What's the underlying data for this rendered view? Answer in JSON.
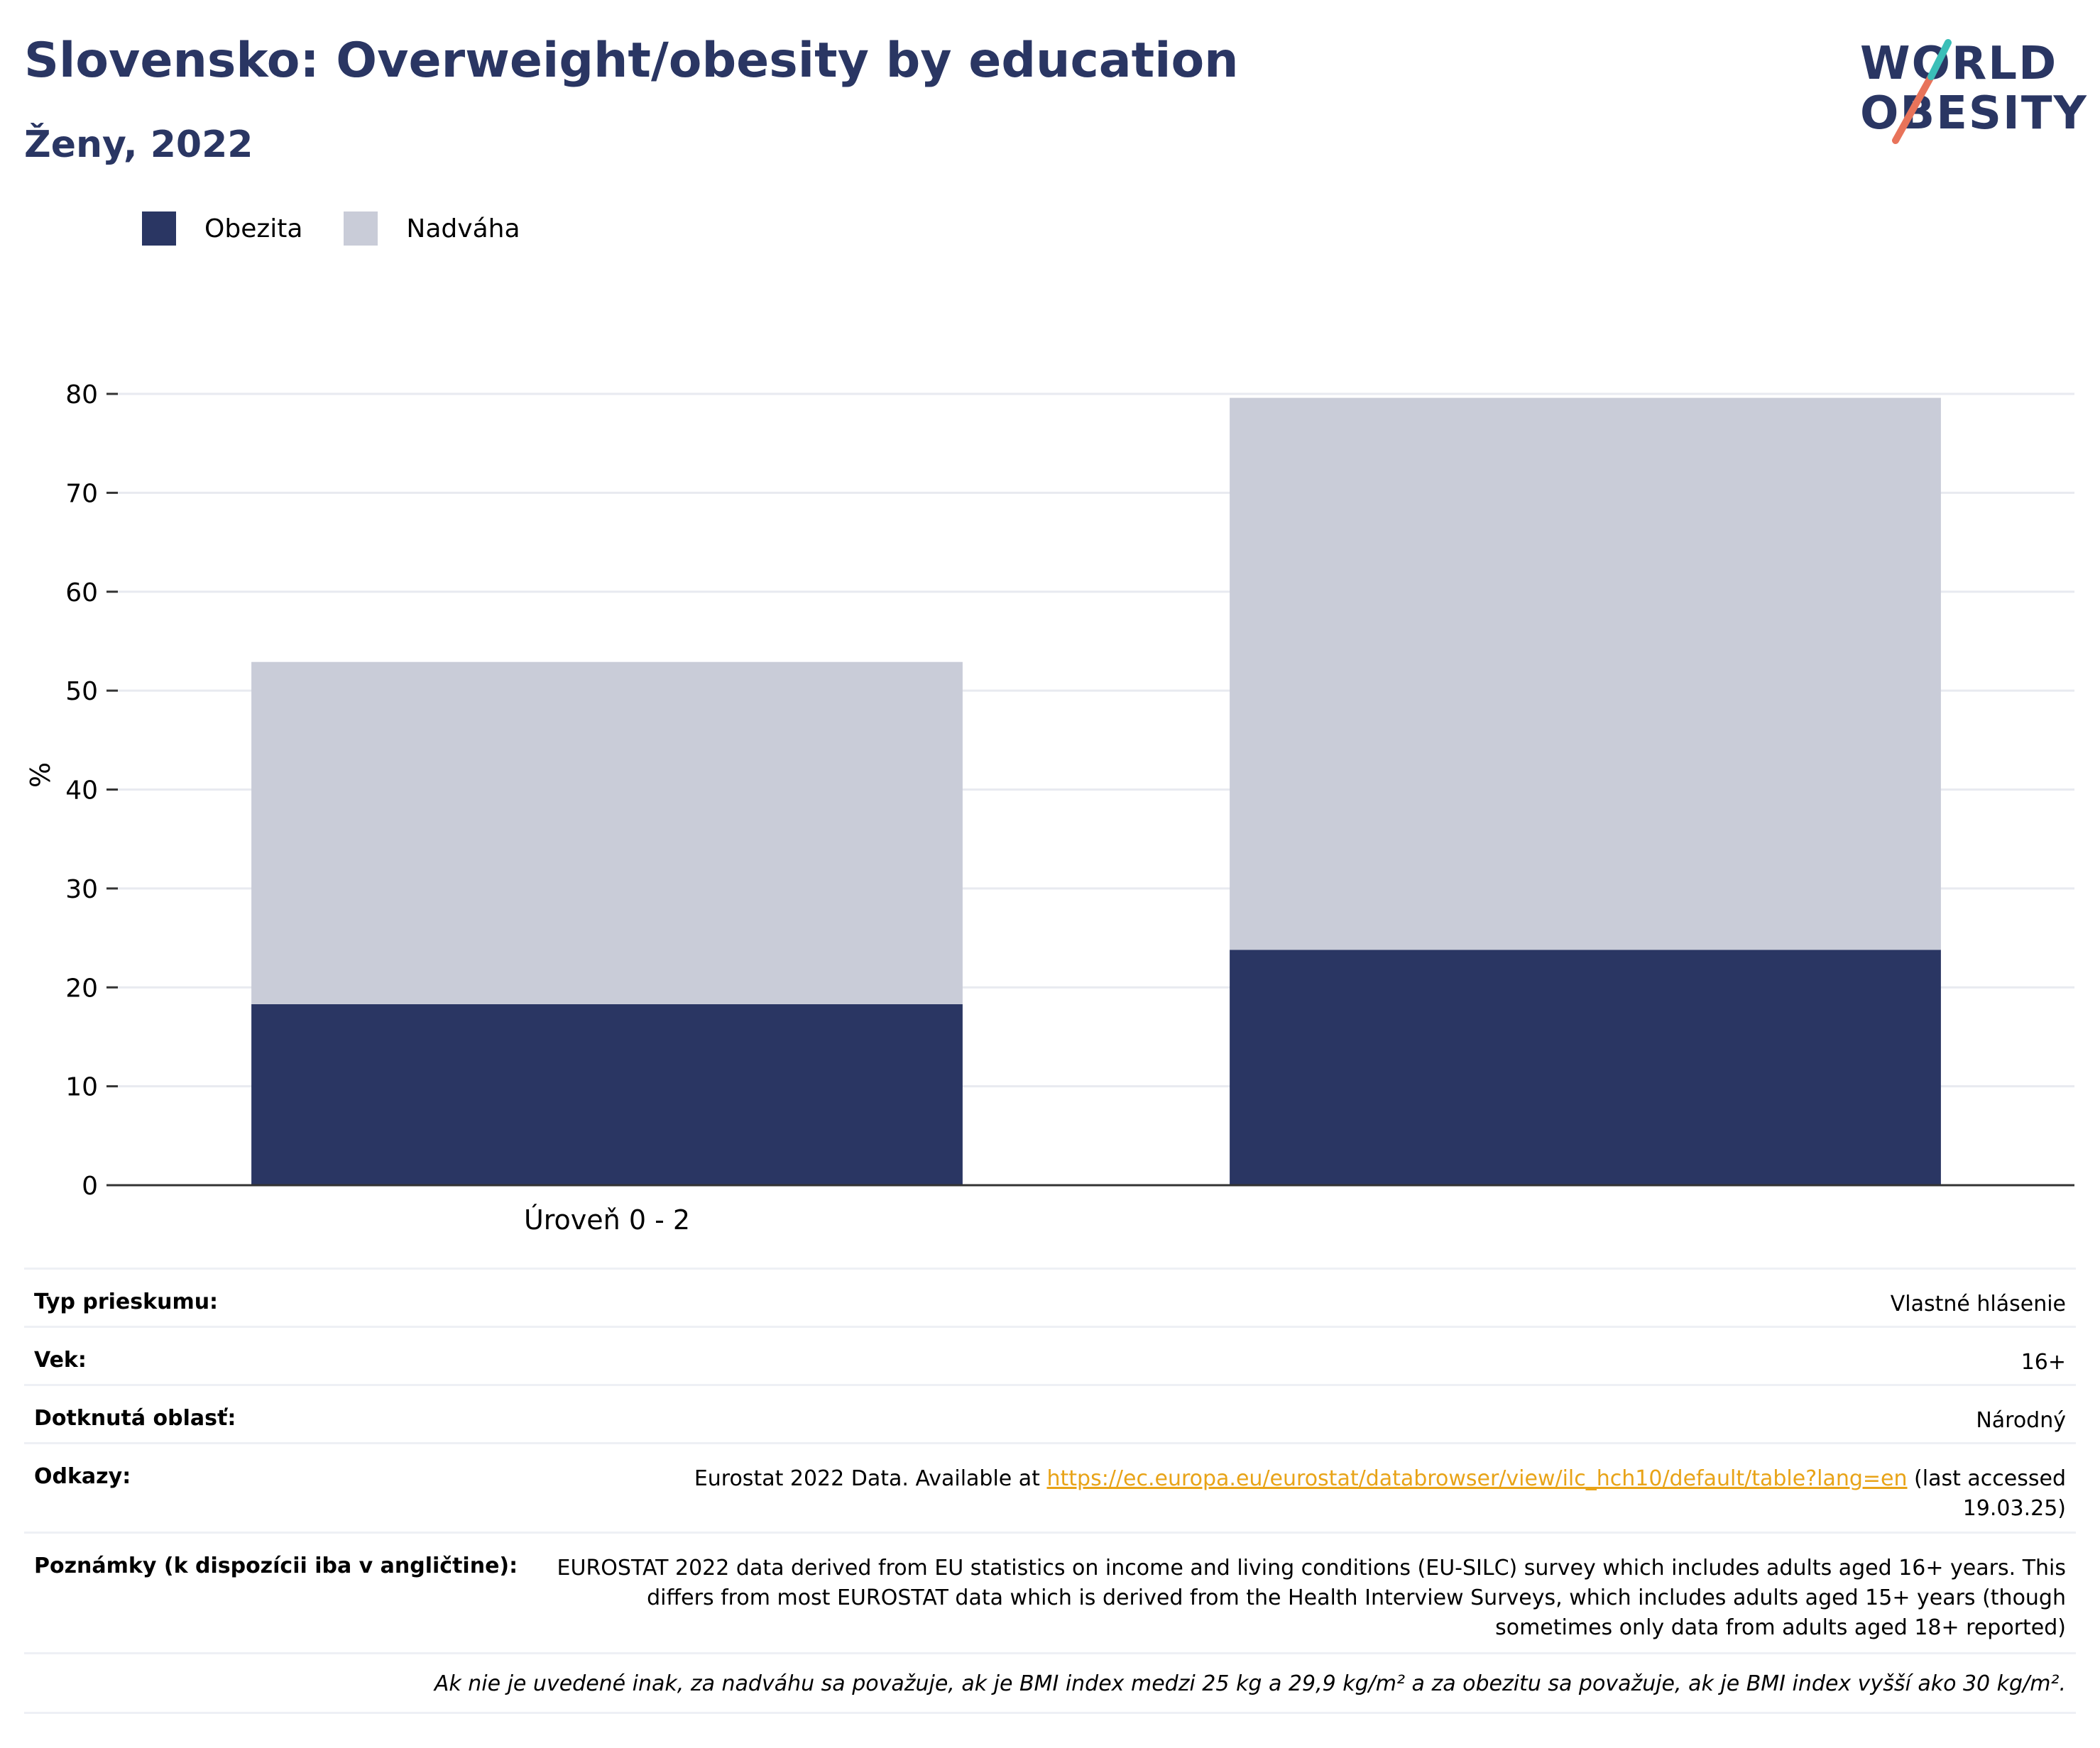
{
  "title": "Slovensko: Overweight/obesity by education",
  "subtitle": "Ženy, 2022",
  "logo": {
    "line1": "WORLD",
    "line2": "OBESITY",
    "accent": "#e8735a",
    "accent2": "#3bbfb8"
  },
  "legend": [
    {
      "label": "Obezita",
      "color": "#2a3663"
    },
    {
      "label": "Nadváha",
      "color": "#c9ccd8"
    }
  ],
  "chart_data": {
    "type": "bar",
    "stacked": true,
    "categories": [
      "Úroveň 0 - 2",
      ""
    ],
    "series": [
      {
        "name": "Obezita",
        "values": [
          18.3,
          23.8
        ],
        "color": "#2a3663"
      },
      {
        "name": "Nadváha",
        "values": [
          34.6,
          55.8
        ],
        "color": "#c9ccd8"
      }
    ],
    "ylabel": "%",
    "ylim": [
      0,
      80
    ],
    "yticks": [
      0,
      10,
      20,
      30,
      40,
      50,
      60,
      70,
      80
    ],
    "grid": true,
    "legend_position": "top-left"
  },
  "info": {
    "rows": [
      {
        "label": "Typ prieskumu:",
        "value": "Vlastné hlásenie"
      },
      {
        "label": "Vek:",
        "value": "16+"
      },
      {
        "label": "Dotknutá oblasť:",
        "value": "Národný"
      }
    ],
    "references": {
      "label": "Odkazy:",
      "prefix": "Eurostat 2022 Data. Available at ",
      "link": "https://ec.europa.eu/eurostat/databrowser/view/ilc_hch10/default/table?lang=en",
      "suffix": " (last accessed 19.03.25)"
    },
    "notes": {
      "label": "Poznámky (k dispozícii iba v angličtine):",
      "value": "EUROSTAT 2022 data derived from EU statistics on income and living conditions (EU-SILC) survey which includes adults aged 16+ years. This differs from most EUROSTAT data which is derived from the Health Interview Surveys, which includes adults aged 15+ years (though sometimes only data from adults aged 18+ reported)"
    },
    "footnote": "Ak nie je uvedené inak, za nadváhu sa považuje, ak je BMI index medzi 25 kg a 29,9 kg/m² a za obezitu sa považuje, ak je BMI index vyšší ako 30 kg/m²."
  }
}
